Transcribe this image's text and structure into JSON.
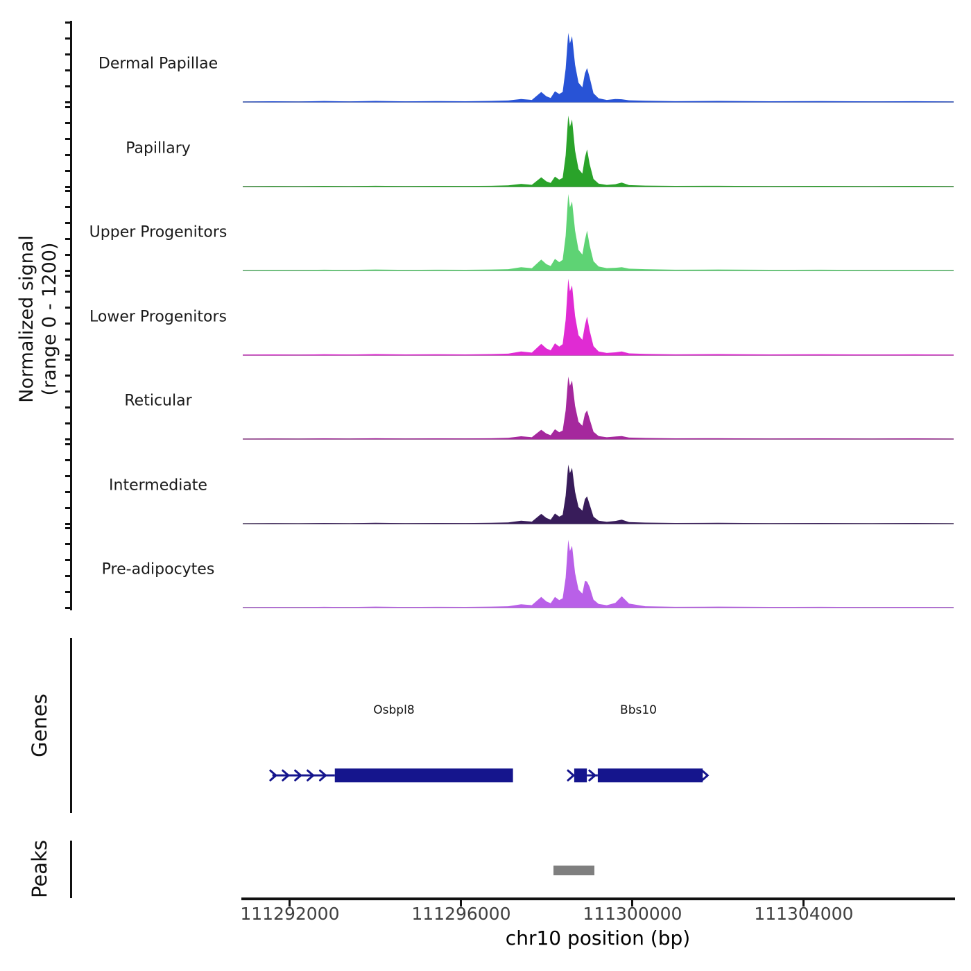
{
  "y_axis": {
    "label_line1": "Normalized signal",
    "label_line2": "(range 0 - 1200)",
    "range_min": 0,
    "range_max": 1200,
    "ticks_per_track": 6
  },
  "genes_section": {
    "label": "Genes",
    "gene_color": "#15158d",
    "genes": [
      {
        "name": "Osbpl8",
        "label_center": 111294430,
        "parts": [
          {
            "type": "line",
            "start": 111291590,
            "end": 111293050
          },
          {
            "type": "box",
            "start": 111293050,
            "end": 111297210
          }
        ],
        "arrows": [
          111291610,
          111291900,
          111292190,
          111292480,
          111292770
        ]
      },
      {
        "name": "Bbs10",
        "label_center": 111300140,
        "parts": [
          {
            "type": "box",
            "start": 111298640,
            "end": 111298935
          },
          {
            "type": "line",
            "start": 111298935,
            "end": 111299190
          },
          {
            "type": "box",
            "start": 111299190,
            "end": 111301640
          }
        ],
        "arrows": [
          111298560,
          111299060,
          111301690
        ]
      }
    ]
  },
  "peaks_section": {
    "label": "Peaks",
    "bar_color": "#7f7f7f",
    "bars": [
      {
        "start": 111298150,
        "end": 111299110
      }
    ]
  },
  "x_axis": {
    "label": "chr10 position (bp)",
    "ticks": [
      111292000,
      111296000,
      111300000,
      111304000
    ],
    "tick_labels": [
      "111292000",
      "111296000",
      "111300000",
      "111304000"
    ]
  },
  "chart_data": {
    "type": "area",
    "title": "",
    "xlabel": "chr10 position (bp)",
    "ylabel": "Normalized signal (range 0 - 1200)",
    "ylim": [
      0,
      1200
    ],
    "xlim": [
      111290900,
      111307500
    ],
    "grid": false,
    "x": [
      111290900,
      111291600,
      111292200,
      111292800,
      111293400,
      111294000,
      111294700,
      111295400,
      111296100,
      111296700,
      111297100,
      111297400,
      111297650,
      111297870,
      111297990,
      111298090,
      111298190,
      111298290,
      111298370,
      111298440,
      111298500,
      111298540,
      111298590,
      111298660,
      111298740,
      111298830,
      111298890,
      111298940,
      111299000,
      111299090,
      111299210,
      111299400,
      111299600,
      111299750,
      111299920,
      111300300,
      111301000,
      111302000,
      111303200,
      111304400,
      111305600,
      111306600,
      111307500
    ],
    "series": [
      {
        "name": "Dermal Papillae",
        "color": "#2853d6",
        "values": [
          5,
          10,
          6,
          14,
          8,
          16,
          9,
          13,
          10,
          15,
          22,
          45,
          30,
          150,
          85,
          60,
          160,
          120,
          150,
          500,
          1040,
          880,
          990,
          560,
          290,
          220,
          430,
          510,
          370,
          130,
          55,
          30,
          45,
          40,
          25,
          18,
          12,
          15,
          10,
          13,
          9,
          12,
          6
        ]
      },
      {
        "name": "Papillary",
        "color": "#2aa32a",
        "values": [
          4,
          8,
          5,
          10,
          7,
          12,
          8,
          11,
          9,
          12,
          18,
          40,
          26,
          140,
          78,
          55,
          150,
          105,
          130,
          470,
          1070,
          900,
          1010,
          540,
          265,
          195,
          440,
          560,
          340,
          115,
          45,
          25,
          35,
          60,
          22,
          14,
          10,
          12,
          8,
          11,
          7,
          10,
          5
        ]
      },
      {
        "name": "Upper Progenitors",
        "color": "#5ed374",
        "values": [
          5,
          9,
          6,
          12,
          8,
          14,
          9,
          12,
          10,
          14,
          20,
          50,
          34,
          165,
          95,
          68,
          175,
          125,
          160,
          520,
          1150,
          950,
          1040,
          600,
          310,
          240,
          460,
          600,
          380,
          140,
          60,
          35,
          40,
          50,
          28,
          20,
          12,
          14,
          10,
          12,
          8,
          11,
          6
        ]
      },
      {
        "name": "Lower Progenitors",
        "color": "#e02bd3",
        "values": [
          6,
          10,
          7,
          13,
          9,
          15,
          10,
          13,
          11,
          15,
          22,
          55,
          38,
          170,
          100,
          72,
          178,
          128,
          165,
          530,
          1150,
          960,
          1050,
          590,
          300,
          230,
          450,
          580,
          370,
          135,
          55,
          32,
          42,
          55,
          26,
          18,
          12,
          15,
          10,
          13,
          9,
          12,
          6
        ]
      },
      {
        "name": "Reticular",
        "color": "#a5289d",
        "values": [
          4,
          8,
          5,
          11,
          7,
          12,
          8,
          11,
          9,
          12,
          18,
          42,
          28,
          140,
          82,
          58,
          148,
          102,
          128,
          430,
          940,
          800,
          880,
          500,
          260,
          200,
          380,
          430,
          300,
          110,
          45,
          28,
          38,
          45,
          22,
          15,
          10,
          12,
          8,
          11,
          7,
          10,
          5
        ]
      },
      {
        "name": "Intermediate",
        "color": "#381c5a",
        "values": [
          4,
          8,
          5,
          11,
          7,
          13,
          8,
          11,
          9,
          13,
          18,
          45,
          30,
          148,
          86,
          60,
          152,
          106,
          132,
          420,
          890,
          760,
          840,
          480,
          250,
          195,
          370,
          410,
          290,
          105,
          45,
          28,
          40,
          60,
          24,
          16,
          10,
          13,
          8,
          11,
          7,
          10,
          5
        ]
      },
      {
        "name": "Pre-adipocytes",
        "color": "#b960e8",
        "values": [
          5,
          9,
          6,
          12,
          8,
          14,
          9,
          12,
          10,
          14,
          20,
          50,
          36,
          160,
          92,
          65,
          160,
          112,
          140,
          450,
          1020,
          850,
          930,
          520,
          270,
          210,
          400,
          390,
          310,
          120,
          55,
          35,
          70,
          170,
          60,
          20,
          12,
          14,
          10,
          12,
          8,
          11,
          6
        ]
      }
    ]
  }
}
